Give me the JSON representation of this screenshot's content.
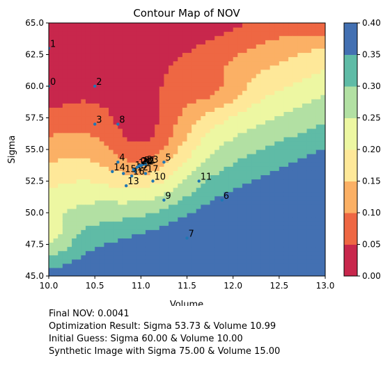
{
  "chart_data": {
    "type": "contour",
    "title": "Contour Map of NOV",
    "xlabel": "Volume",
    "ylabel": "Sigma",
    "xlim": [
      10.0,
      13.0
    ],
    "ylim": [
      45.0,
      65.0
    ],
    "x_ticks": [
      "10.0",
      "10.5",
      "11.0",
      "11.5",
      "12.0",
      "12.5",
      "13.0"
    ],
    "y_ticks": [
      "45.0",
      "47.5",
      "50.0",
      "52.5",
      "55.0",
      "57.5",
      "60.0",
      "62.5",
      "65.0"
    ],
    "colorbar": {
      "ticks": [
        "0.00",
        "0.05",
        "0.10",
        "0.15",
        "0.20",
        "0.25",
        "0.30",
        "0.35",
        "0.40"
      ],
      "levels": [
        0.0,
        0.05,
        0.1,
        0.15,
        0.2,
        0.25,
        0.3,
        0.35,
        0.4
      ],
      "colors": [
        "#c8274c",
        "#ee6743",
        "#fbb065",
        "#fee899",
        "#edf7a2",
        "#b2e0a3",
        "#5fbba6",
        "#4370b2"
      ]
    },
    "optimization_path": [
      {
        "label": "0",
        "volume": 10.0,
        "sigma": 60.0
      },
      {
        "label": "1",
        "volume": 10.0,
        "sigma": 63.0
      },
      {
        "label": "2",
        "volume": 10.5,
        "sigma": 60.0
      },
      {
        "label": "3",
        "volume": 10.5,
        "sigma": 57.0
      },
      {
        "label": "4",
        "volume": 10.75,
        "sigma": 54.0
      },
      {
        "label": "5",
        "volume": 11.25,
        "sigma": 54.0
      },
      {
        "label": "6",
        "volume": 11.88,
        "sigma": 51.0
      },
      {
        "label": "7",
        "volume": 11.5,
        "sigma": 48.0
      },
      {
        "label": "8",
        "volume": 10.75,
        "sigma": 57.0
      },
      {
        "label": "9",
        "volume": 11.25,
        "sigma": 51.0
      },
      {
        "label": "10",
        "volume": 11.13,
        "sigma": 52.5
      },
      {
        "label": "11",
        "volume": 11.63,
        "sigma": 52.5
      },
      {
        "label": "12",
        "volume": 10.94,
        "sigma": 53.25
      },
      {
        "label": "13",
        "volume": 10.84,
        "sigma": 52.13
      },
      {
        "label": "14",
        "volume": 10.69,
        "sigma": 53.25
      },
      {
        "label": "15",
        "volume": 10.81,
        "sigma": 53.1
      },
      {
        "label": "16",
        "volume": 10.9,
        "sigma": 52.9
      },
      {
        "label": "17",
        "volume": 11.05,
        "sigma": 53.1
      },
      {
        "label": "18",
        "volume": 10.92,
        "sigma": 53.4
      },
      {
        "label": "19",
        "volume": 10.96,
        "sigma": 53.6
      },
      {
        "label": "20",
        "volume": 10.98,
        "sigma": 53.7
      },
      {
        "label": "21",
        "volume": 11.02,
        "sigma": 53.8
      },
      {
        "label": "22",
        "volume": 11.0,
        "sigma": 53.72
      },
      {
        "label": "23",
        "volume": 11.05,
        "sigma": 53.85
      },
      {
        "label": "24",
        "volume": 10.99,
        "sigma": 53.73
      }
    ]
  },
  "notes": [
    "Final NOV: 0.0041",
    "Optimization Result: Sigma 53.73 & Volume 10.99",
    "Initial Guess: Sigma 60.00 & Volume 10.00",
    "Synthetic Image with Sigma 75.00 & Volume 15.00"
  ]
}
